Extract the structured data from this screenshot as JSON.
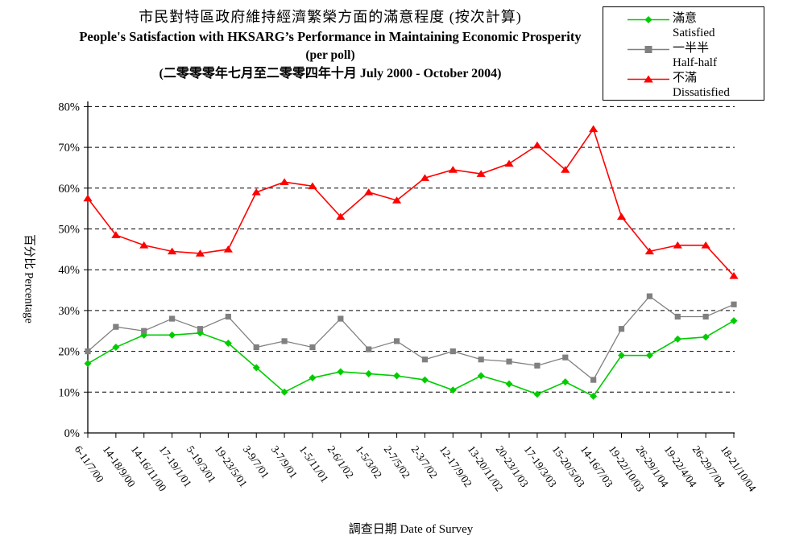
{
  "chart_data": {
    "type": "line",
    "title_lines": [
      "市民對特區政府維持經濟繁榮方面的滿意程度 (按次計算)",
      "People's Satisfaction with HKSARG’s Performance in Maintaining Economic Prosperity",
      "(per poll)",
      "(二零零零年七月至二零零四年十月 July 2000 -  October 2004)"
    ],
    "x_axis_title": "調查日期 Date of Survey",
    "y_axis_title": "百分比 Percentage",
    "ylim": [
      0,
      80
    ],
    "y_ticks": [
      "0%",
      "10%",
      "20%",
      "30%",
      "40%",
      "50%",
      "60%",
      "70%",
      "80%"
    ],
    "grid": "horizontal-dashed",
    "legend_position": "top-right",
    "categories": [
      "6-11/7/00",
      "14-18/9/00",
      "14-16/11/00",
      "17-19/1/01",
      "5-19/3/01",
      "19-23/5/01",
      "3-9/7/01",
      "3-7/9/01",
      "1-5/11/01",
      "2-6/1/02",
      "1-5/3/02",
      "2-7/5/02",
      "2-3/7/02",
      "12-17/9/02",
      "13-20/11/02",
      "20-23/1/03",
      "17-19/3/03",
      "15-20/5/03",
      "14-16/7/03",
      "19-22/10/03",
      "26-29/1/04",
      "19-22/4/04",
      "26-29/7/04",
      "18-21/10/04"
    ],
    "series": [
      {
        "name_zh": "滿意",
        "name_en": "Satisfied",
        "color": "#00CC00",
        "marker": "diamond",
        "values": [
          17,
          21,
          24,
          24,
          24.5,
          22,
          16,
          10,
          13.5,
          15,
          14.5,
          14,
          13,
          10.5,
          14,
          12,
          9.5,
          12.5,
          9,
          19,
          19,
          23,
          23.5,
          27.5
        ]
      },
      {
        "name_zh": "一半半",
        "name_en": "Half-half",
        "color": "#808080",
        "marker": "square",
        "values": [
          20,
          26,
          25,
          28,
          25.5,
          28.5,
          21,
          22.5,
          21,
          28,
          20.5,
          22.5,
          18,
          20,
          18,
          17.5,
          16.5,
          18.5,
          13,
          25.5,
          33.5,
          28.5,
          28.5,
          31.5
        ]
      },
      {
        "name_zh": "不滿",
        "name_en": "Dissatisfied",
        "color": "#FF0000",
        "marker": "triangle",
        "values": [
          57.5,
          48.5,
          46,
          44.5,
          44,
          45,
          59,
          61.5,
          60.5,
          53,
          59,
          57,
          62.5,
          64.5,
          63.5,
          66,
          70.5,
          64.5,
          74.5,
          53,
          44.5,
          46,
          46,
          38.5
        ]
      }
    ]
  }
}
